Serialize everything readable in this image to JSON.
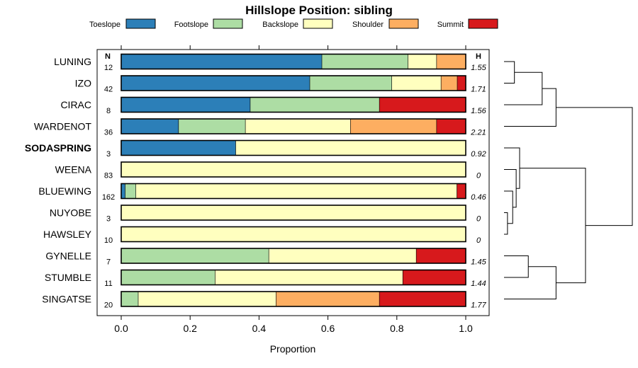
{
  "chart_data": {
    "type": "bar",
    "orientation": "horizontal",
    "stacked": true,
    "title": "Hillslope Position: sibling",
    "xlabel": "Proportion",
    "xlim": [
      0,
      1
    ],
    "xticks": [
      "0.0",
      "0.2",
      "0.4",
      "0.6",
      "0.8",
      "1.0"
    ],
    "n_header": "N",
    "h_header": "H",
    "highlight": "SODASPRING",
    "legend_position": "top",
    "series": [
      {
        "name": "Toeslope",
        "color": "#2c7fb8"
      },
      {
        "name": "Footslope",
        "color": "#addda4"
      },
      {
        "name": "Backslope",
        "color": "#ffffbf"
      },
      {
        "name": "Shoulder",
        "color": "#fdae61"
      },
      {
        "name": "Summit",
        "color": "#d7191c"
      }
    ],
    "categories": [
      {
        "name": "LUNING",
        "n": "12",
        "h": "1.55",
        "values": [
          0.583,
          0.25,
          0.083,
          0.084,
          0
        ]
      },
      {
        "name": "IZO",
        "n": "42",
        "h": "1.71",
        "values": [
          0.548,
          0.238,
          0.143,
          0.047,
          0.024
        ]
      },
      {
        "name": "CIRAC",
        "n": "8",
        "h": "1.56",
        "values": [
          0.375,
          0.375,
          0,
          0,
          0.25
        ]
      },
      {
        "name": "WARDENOT",
        "n": "36",
        "h": "2.21",
        "values": [
          0.167,
          0.194,
          0.305,
          0.25,
          0.084
        ]
      },
      {
        "name": "SODASPRING",
        "n": "3",
        "h": "0.92",
        "values": [
          0.333,
          0,
          0.667,
          0,
          0
        ]
      },
      {
        "name": "WEENA",
        "n": "83",
        "h": "0",
        "values": [
          0,
          0,
          1,
          0,
          0
        ]
      },
      {
        "name": "BLUEWING",
        "n": "162",
        "h": "0.46",
        "values": [
          0.012,
          0.031,
          0.932,
          0,
          0.025
        ]
      },
      {
        "name": "NUYOBE",
        "n": "3",
        "h": "0",
        "values": [
          0,
          0,
          1,
          0,
          0
        ]
      },
      {
        "name": "HAWSLEY",
        "n": "10",
        "h": "0",
        "values": [
          0,
          0,
          1,
          0,
          0
        ]
      },
      {
        "name": "GYNELLE",
        "n": "7",
        "h": "1.45",
        "values": [
          0,
          0.429,
          0.428,
          0,
          0.143
        ]
      },
      {
        "name": "STUMBLE",
        "n": "11",
        "h": "1.44",
        "values": [
          0,
          0.273,
          0.545,
          0,
          0.182
        ]
      },
      {
        "name": "SINGATSE",
        "n": "20",
        "h": "1.77",
        "values": [
          0,
          0.05,
          0.4,
          0.3,
          0.25
        ]
      }
    ],
    "dendrogram": {
      "merges": [
        {
          "a": "LUNING",
          "b": "IZO",
          "height": 0.06
        },
        {
          "a": "#0",
          "b": "CIRAC",
          "height": 0.22
        },
        {
          "a": "#1",
          "b": "WARDENOT",
          "height": 0.3
        },
        {
          "a": "NUYOBE",
          "b": "HAWSLEY",
          "height": 0.02
        },
        {
          "a": "BLUEWING",
          "b": "#3",
          "height": 0.05
        },
        {
          "a": "WEENA",
          "b": "#4",
          "height": 0.07
        },
        {
          "a": "SODASPRING",
          "b": "#5",
          "height": 0.09
        },
        {
          "a": "GYNELLE",
          "b": "STUMBLE",
          "height": 0.14
        },
        {
          "a": "SINGATSE",
          "b": "#7",
          "height": 0.3
        },
        {
          "a": "#6",
          "b": "#8",
          "height": 0.47
        },
        {
          "a": "#2",
          "b": "#9",
          "height": 0.74
        }
      ]
    }
  }
}
